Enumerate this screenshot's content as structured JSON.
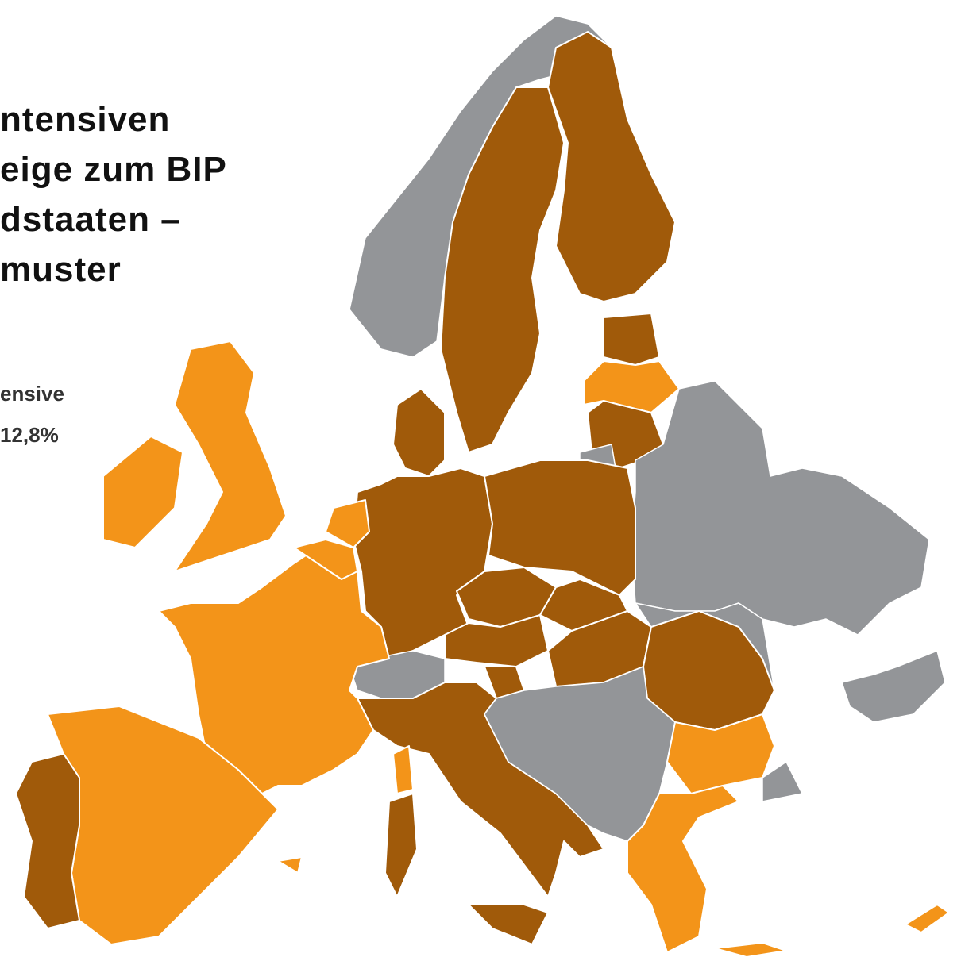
{
  "title_lines": [
    "ntensiven",
    "eige zum BIP",
    "dstaaten –",
    "muster"
  ],
  "legend": [
    "ensive",
    "12,8%"
  ]
}
